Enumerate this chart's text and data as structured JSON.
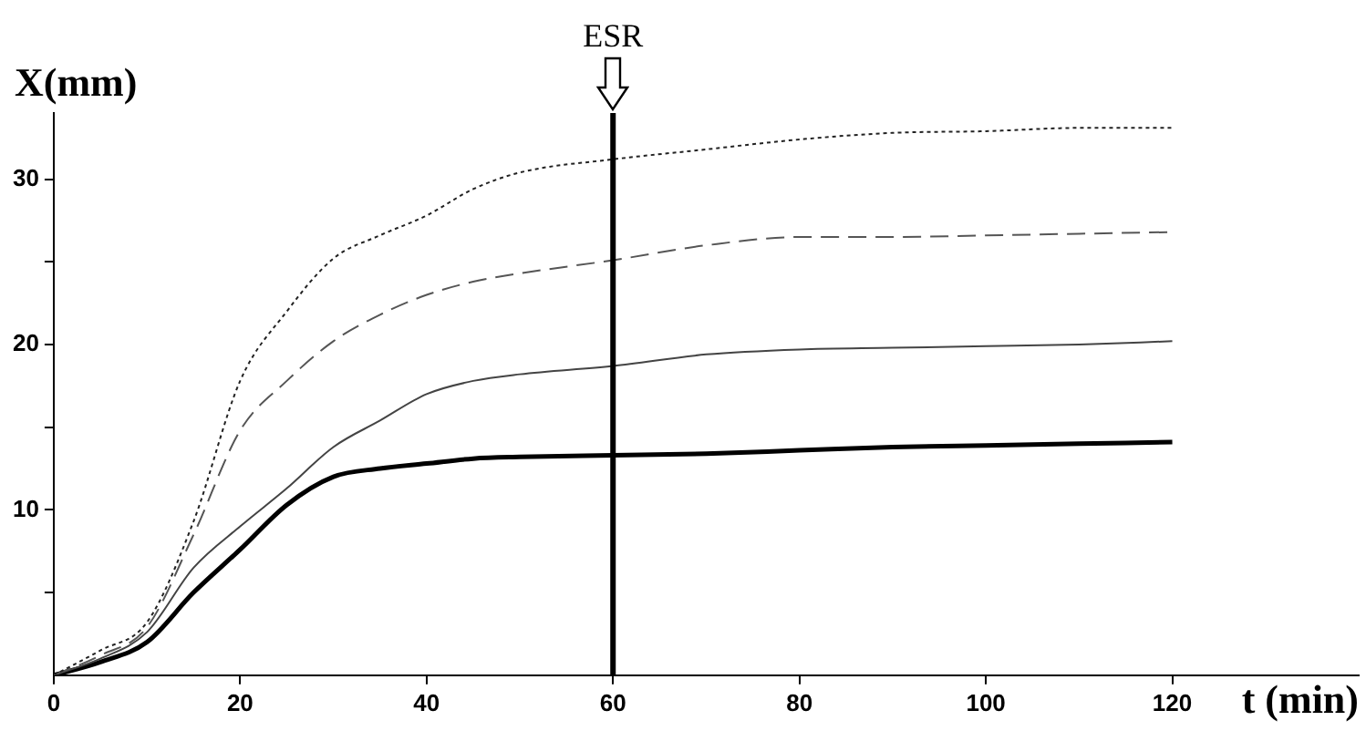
{
  "chart_data": {
    "type": "line",
    "xlabel": "t (min)",
    "ylabel": "X(mm)",
    "x": [
      0,
      5,
      10,
      15,
      20,
      25,
      30,
      35,
      40,
      45,
      50,
      60,
      70,
      80,
      90,
      100,
      110,
      120
    ],
    "xlim": [
      0,
      140
    ],
    "xticks": [
      0,
      20,
      40,
      60,
      80,
      100,
      120
    ],
    "ylim": [
      0,
      34
    ],
    "yticks": [
      {
        "value": 5,
        "label": null
      },
      10,
      {
        "value": 15,
        "label": null
      },
      20,
      {
        "value": 25,
        "label": null
      },
      30
    ],
    "grid": false,
    "legend": false,
    "marker": "none",
    "series": [
      {
        "color": "#222222",
        "line_style": "dotted",
        "values": [
          0,
          1.5,
          3.2,
          9.3,
          17.8,
          22,
          25.2,
          26.6,
          27.8,
          29.4,
          30.4,
          31.2,
          31.8,
          32.4,
          32.8,
          32.9,
          33.1,
          33.1
        ]
      },
      {
        "color": "#555555",
        "line_style": "dashed",
        "values": [
          0,
          1.2,
          2.9,
          8.5,
          14.8,
          17.8,
          20.2,
          21.8,
          23,
          23.8,
          24.3,
          25.1,
          26,
          26.5,
          26.5,
          26.6,
          26.7,
          26.8
        ]
      },
      {
        "color": "#444444",
        "line_style": "solid",
        "values": [
          0,
          1,
          2.6,
          6.5,
          9,
          11.3,
          13.8,
          15.4,
          17,
          17.8,
          18.2,
          18.7,
          19.4,
          19.7,
          19.8,
          19.9,
          20,
          20.2
        ]
      },
      {
        "color": "#000000",
        "line_style": "solid",
        "values": [
          0,
          0.8,
          2,
          5,
          7.6,
          10.3,
          12,
          12.5,
          12.8,
          13.1,
          13.2,
          13.3,
          13.4,
          13.6,
          13.8,
          13.9,
          14,
          14.1
        ]
      }
    ],
    "ref_lines": [
      {
        "axis": "x",
        "value": 60,
        "label": "ESR",
        "color": "#000000"
      }
    ]
  }
}
